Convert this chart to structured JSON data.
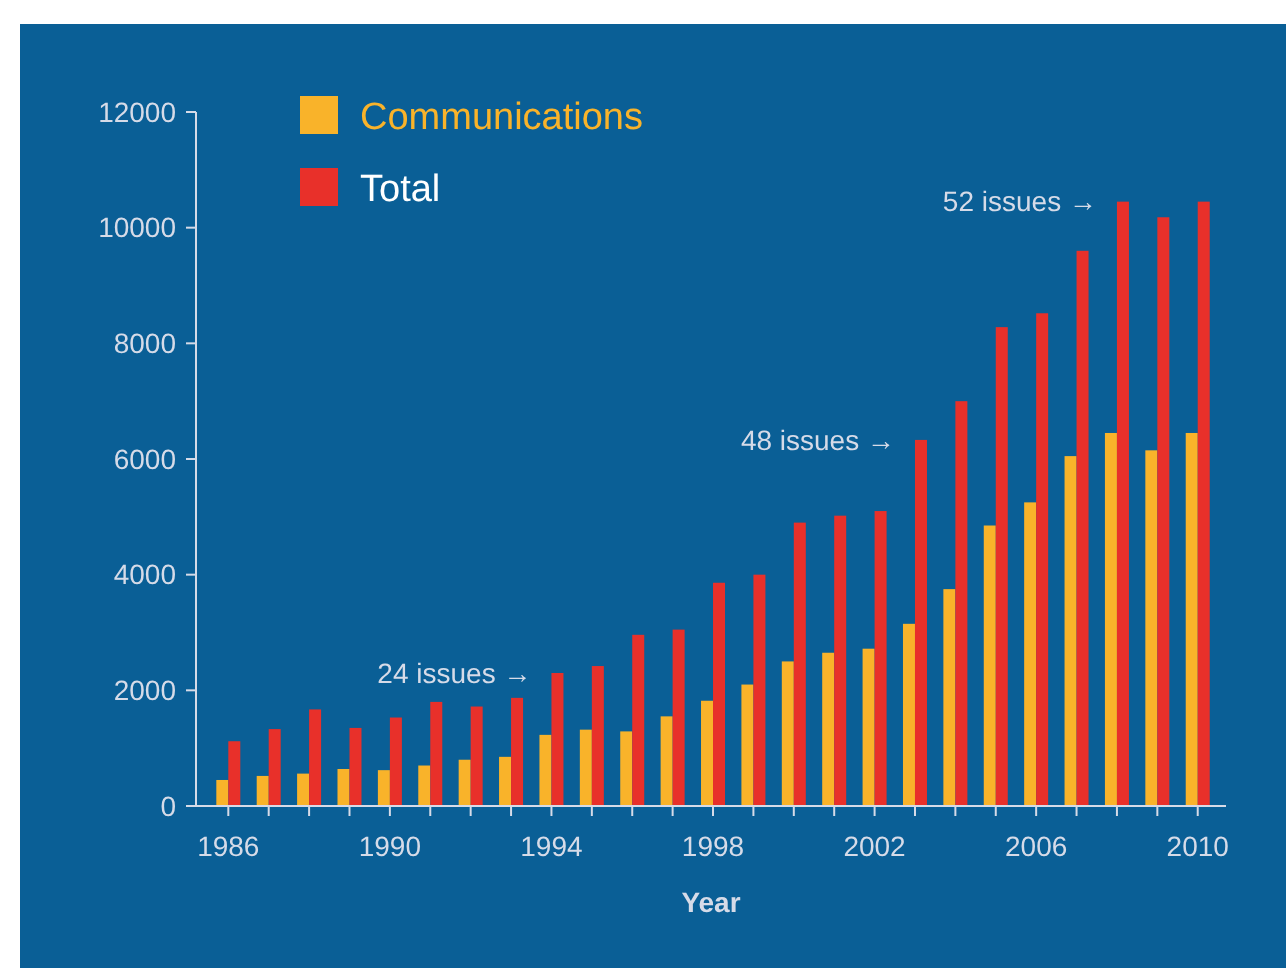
{
  "chart_data": {
    "type": "bar",
    "xlabel": "Year",
    "x": [
      1986,
      1987,
      1988,
      1989,
      1990,
      1991,
      1992,
      1993,
      1994,
      1995,
      1996,
      1997,
      1998,
      1999,
      2000,
      2001,
      2002,
      2003,
      2004,
      2005,
      2006,
      2007,
      2008,
      2009,
      2010
    ],
    "series": [
      {
        "name": "Communications",
        "color": "#f9b32a",
        "values": [
          450,
          520,
          560,
          640,
          620,
          700,
          800,
          850,
          1230,
          1320,
          1290,
          1550,
          1820,
          2100,
          2500,
          2650,
          2720,
          3150,
          3750,
          4850,
          5250,
          6050,
          6450,
          6150,
          6450
        ]
      },
      {
        "name": "Total",
        "color": "#e8302a",
        "values": [
          1120,
          1330,
          1670,
          1350,
          1530,
          1800,
          1720,
          1870,
          2300,
          2420,
          2960,
          3050,
          3860,
          4000,
          4900,
          5020,
          5100,
          6330,
          7000,
          8280,
          8520,
          9600,
          10450,
          10180,
          10450
        ]
      }
    ],
    "xlim": [
      1985.2,
      2010.7
    ],
    "xticks": [
      1986,
      {
        "value": 1987,
        "label": null
      },
      {
        "value": 1988,
        "label": null
      },
      {
        "value": 1989,
        "label": null
      },
      1990,
      {
        "value": 1991,
        "label": null
      },
      {
        "value": 1992,
        "label": null
      },
      {
        "value": 1993,
        "label": null
      },
      1994,
      {
        "value": 1995,
        "label": null
      },
      {
        "value": 1996,
        "label": null
      },
      {
        "value": 1997,
        "label": null
      },
      1998,
      {
        "value": 1999,
        "label": null
      },
      {
        "value": 2000,
        "label": null
      },
      {
        "value": 2001,
        "label": null
      },
      2002,
      {
        "value": 2003,
        "label": null
      },
      {
        "value": 2004,
        "label": null
      },
      {
        "value": 2005,
        "label": null
      },
      2006,
      {
        "value": 2007,
        "label": null
      },
      {
        "value": 2008,
        "label": null
      },
      {
        "value": 2009,
        "label": null
      },
      2010
    ],
    "ylim": [
      0,
      12000
    ],
    "yticks": [
      0,
      2000,
      4000,
      6000,
      8000,
      10000,
      12000
    ],
    "grid": false,
    "legend": "top left",
    "annotations": [
      {
        "text": "24 issues →",
        "x": 1994,
        "y": 2300
      },
      {
        "text": "48 issues →",
        "x": 2003,
        "y": 6330
      },
      {
        "text": "52 issues →",
        "x": 2008,
        "y": 10450
      }
    ]
  }
}
